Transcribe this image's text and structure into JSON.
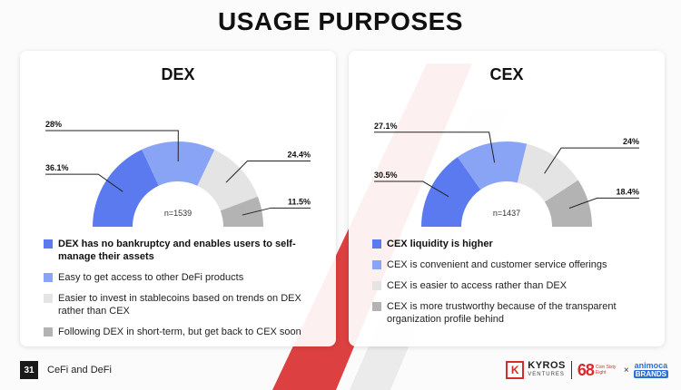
{
  "page": {
    "title": "USAGE PURPOSES",
    "page_number": "31",
    "section": "CeFi and DeFi"
  },
  "logos": {
    "kyros_mark": "K",
    "kyros_name": "KYROS",
    "kyros_sub": "VENTURES",
    "coin68": "68",
    "coin68_sub": "Coin Sixty Eight",
    "times": "×",
    "animoca_top": "animoca",
    "animoca_bottom": "BRANDS"
  },
  "colors": {
    "s1": "#5b7af0",
    "s2": "#8aa4f5",
    "s3": "#e4e4e4",
    "s4": "#b3b3b3",
    "accent_red": "#d92b2b"
  },
  "chart_data": [
    {
      "type": "pie",
      "title": "DEX",
      "n_label": "n=1539",
      "slices": [
        {
          "value": 36.1,
          "label": "36.1%",
          "legend": "DEX has no bankruptcy and enables users to self-manage their assets",
          "bold": true
        },
        {
          "value": 28,
          "label": "28%",
          "legend": "Easy to get access to other DeFi products",
          "bold": false
        },
        {
          "value": 24.4,
          "label": "24.4%",
          "legend": "Easier to invest in stablecoins based on trends on DEX rather than CEX",
          "bold": false
        },
        {
          "value": 11.5,
          "label": "11.5%",
          "legend": "Following DEX in short-term, but get back to CEX soon",
          "bold": false
        }
      ]
    },
    {
      "type": "pie",
      "title": "CEX",
      "n_label": "n=1437",
      "slices": [
        {
          "value": 30.5,
          "label": "30.5%",
          "legend": "CEX liquidity is higher",
          "bold": true
        },
        {
          "value": 27.1,
          "label": "27.1%",
          "legend": "CEX is convenient and customer service offerings",
          "bold": false
        },
        {
          "value": 24,
          "label": "24%",
          "legend": "CEX is easier to access rather than DEX",
          "bold": false
        },
        {
          "value": 18.4,
          "label": "18.4%",
          "legend": "CEX is more trustworthy because of the transparent organization profile behind",
          "bold": false
        }
      ]
    }
  ]
}
